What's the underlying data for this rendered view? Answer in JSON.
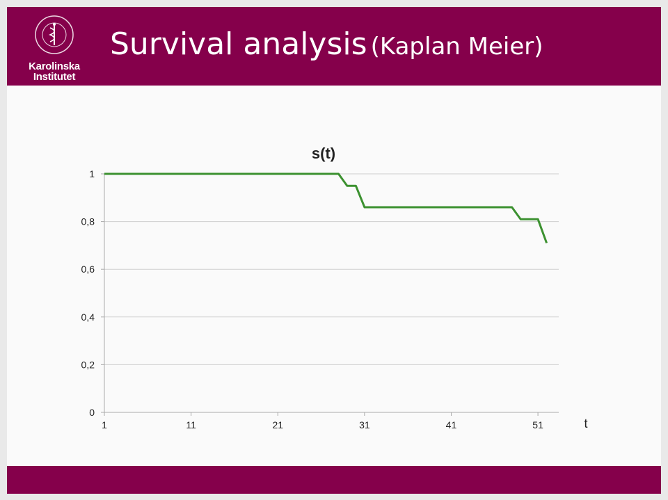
{
  "header": {
    "title": "Survival analysis",
    "subtitle": "(Kaplan Meier)",
    "logo_line1": "Karolinska",
    "logo_line2": "Institutet",
    "brand_color": "#85004b"
  },
  "chart_data": {
    "type": "line",
    "title": "s(t)",
    "xlabel": "t",
    "ylabel": "",
    "x_ticks": [
      "1",
      "11",
      "21",
      "31",
      "41",
      "51"
    ],
    "y_ticks": [
      "0",
      "0,2",
      "0,4",
      "0,6",
      "0,8",
      "1"
    ],
    "xlim": [
      1,
      53
    ],
    "ylim": [
      0,
      1
    ],
    "grid": true,
    "line_color": "#3c9130",
    "series": [
      {
        "name": "",
        "x": [
          1,
          2,
          3,
          4,
          5,
          6,
          7,
          8,
          9,
          10,
          11,
          12,
          13,
          14,
          15,
          16,
          17,
          18,
          19,
          20,
          21,
          22,
          23,
          24,
          25,
          26,
          27,
          28,
          29,
          30,
          31,
          32,
          33,
          34,
          35,
          36,
          37,
          38,
          39,
          40,
          41,
          42,
          43,
          44,
          45,
          46,
          47,
          48,
          49,
          50,
          51,
          52
        ],
        "values": [
          1,
          1,
          1,
          1,
          1,
          1,
          1,
          1,
          1,
          1,
          1,
          1,
          1,
          1,
          1,
          1,
          1,
          1,
          1,
          1,
          1,
          1,
          1,
          1,
          1,
          1,
          1,
          1,
          0.95,
          0.95,
          0.86,
          0.86,
          0.86,
          0.86,
          0.86,
          0.86,
          0.86,
          0.86,
          0.86,
          0.86,
          0.86,
          0.86,
          0.86,
          0.86,
          0.86,
          0.86,
          0.86,
          0.86,
          0.81,
          0.81,
          0.81,
          0.71
        ]
      }
    ]
  }
}
